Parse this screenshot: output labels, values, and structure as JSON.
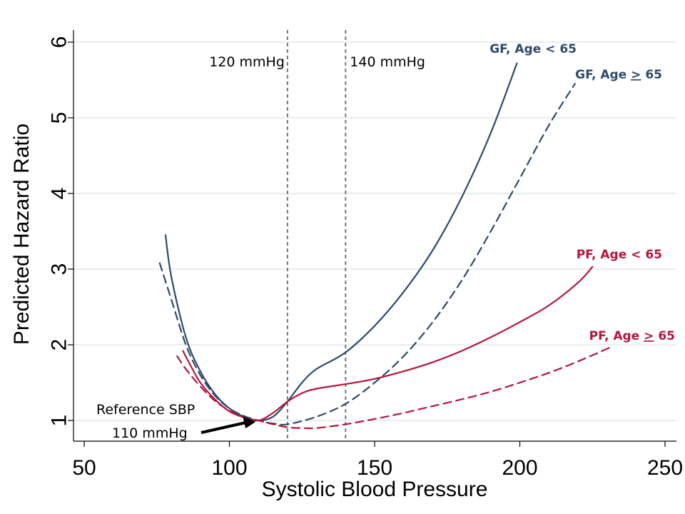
{
  "chart_data": {
    "type": "line",
    "xlabel": "Systolic Blood Pressure",
    "ylabel": "Predicted Hazard Ratio",
    "xlim": [
      50,
      250
    ],
    "ylim": [
      0.7,
      6.2
    ],
    "x_ticks": [
      50,
      100,
      150,
      200,
      250
    ],
    "y_ticks": [
      1,
      2,
      3,
      4,
      5,
      6
    ],
    "x_tick_labels": [
      "50",
      "100",
      "150",
      "200",
      "250"
    ],
    "y_tick_labels": [
      "1",
      "2",
      "3",
      "4",
      "5",
      "6"
    ],
    "grid": "horizontal",
    "colors": {
      "gf": "#2e4a6b",
      "pf": "#b5163d",
      "ref_lines": "#777777",
      "arrow": "#000000"
    },
    "reference_lines": [
      {
        "x": 120,
        "label": "120 mmHg",
        "label_side": "left"
      },
      {
        "x": 140,
        "label": "140 mmHg",
        "label_side": "right"
      }
    ],
    "annotation": {
      "line1": "Reference SBP",
      "line2": "110 mmHg",
      "point": {
        "x": 110,
        "y": 1.0
      }
    },
    "series": [
      {
        "name": "GF, Age < 65",
        "color": "#2e4a6b",
        "dash": "solid",
        "x": [
          78,
          80,
          85,
          90,
          95,
          100,
          105,
          110,
          115,
          120,
          125,
          130,
          140,
          150,
          160,
          170,
          180,
          190,
          199
        ],
        "y": [
          3.45,
          2.9,
          2.1,
          1.65,
          1.35,
          1.16,
          1.05,
          1.0,
          1.05,
          1.25,
          1.5,
          1.68,
          1.9,
          2.25,
          2.7,
          3.25,
          3.95,
          4.8,
          5.72
        ]
      },
      {
        "name": "GF, Age ≥ 65",
        "label_pre": "GF, Age ",
        "label_sym": ">",
        "label_post": " 65",
        "color": "#2e4a6b",
        "dash": "dashed",
        "x": [
          76,
          80,
          85,
          90,
          95,
          100,
          105,
          110,
          115,
          120,
          130,
          140,
          150,
          160,
          170,
          180,
          190,
          200,
          210,
          219
        ],
        "y": [
          3.08,
          2.6,
          2.0,
          1.6,
          1.33,
          1.16,
          1.06,
          1.0,
          0.96,
          0.95,
          1.05,
          1.22,
          1.5,
          1.85,
          2.3,
          2.85,
          3.5,
          4.2,
          4.9,
          5.45
        ]
      },
      {
        "name": "PF, Age < 65",
        "color": "#b5163d",
        "dash": "solid",
        "x": [
          84,
          87,
          90,
          95,
          100,
          105,
          110,
          115,
          120,
          125,
          130,
          140,
          150,
          160,
          170,
          180,
          190,
          200,
          210,
          220,
          225
        ],
        "y": [
          1.92,
          1.7,
          1.5,
          1.28,
          1.12,
          1.04,
          1.0,
          1.1,
          1.25,
          1.36,
          1.42,
          1.48,
          1.55,
          1.65,
          1.77,
          1.92,
          2.1,
          2.3,
          2.52,
          2.82,
          3.03
        ]
      },
      {
        "name": "PF, Age ≥ 65",
        "label_pre": "PF, Age ",
        "label_sym": ">",
        "label_post": " 65",
        "color": "#b5163d",
        "dash": "dashed",
        "x": [
          82,
          85,
          90,
          95,
          100,
          105,
          110,
          115,
          120,
          125,
          130,
          140,
          150,
          160,
          170,
          180,
          190,
          200,
          210,
          220,
          232
        ],
        "y": [
          1.85,
          1.68,
          1.45,
          1.26,
          1.13,
          1.04,
          1.0,
          0.95,
          0.91,
          0.9,
          0.9,
          0.95,
          1.02,
          1.1,
          1.19,
          1.28,
          1.38,
          1.5,
          1.63,
          1.78,
          1.98
        ]
      }
    ]
  }
}
